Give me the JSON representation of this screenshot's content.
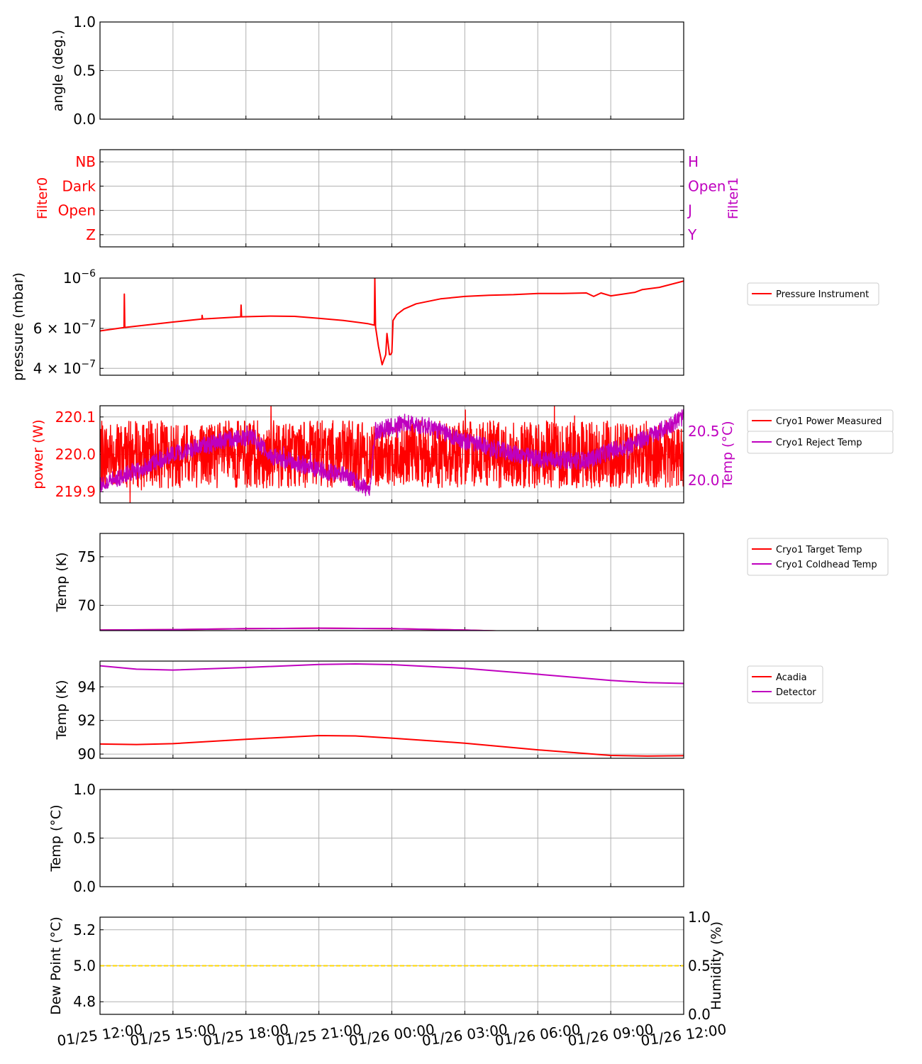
{
  "x_axis": {
    "unit": "hours since 01/25 12:00",
    "xlim": [
      0,
      24
    ],
    "ticks": [
      0,
      3,
      6,
      9,
      12,
      15,
      18,
      21,
      24
    ],
    "ticklabels": [
      "01/25 12:00",
      "01/25 15:00",
      "01/25 18:00",
      "01/25 21:00",
      "01/26 00:00",
      "01/26 03:00",
      "01/26 06:00",
      "01/26 09:00",
      "01/26 12:00"
    ]
  },
  "chart_data": [
    {
      "type": "line",
      "ylabel": "angle (deg.)",
      "scale": "linear",
      "ylim": [
        0,
        1
      ],
      "yticks": [
        0,
        0.5,
        1
      ],
      "yticklabels": [
        "0.0",
        "0.5",
        "1.0"
      ],
      "grid": true,
      "series": []
    },
    {
      "type": "line",
      "ylabel": "Filter0",
      "ylabel_color": "#ff0000",
      "scale": "linear",
      "ylim": [
        -0.5,
        3.5
      ],
      "yticks": [
        0,
        1,
        2,
        3
      ],
      "yticklabels": [
        "Z",
        "Open",
        "Dark",
        "NB"
      ],
      "ytick_color": "#ff0000",
      "right": {
        "ylabel": "Filter1",
        "color": "#bf00bf",
        "ylim": [
          -0.5,
          3.5
        ],
        "yticks": [
          0,
          1,
          2,
          3
        ],
        "yticklabels": [
          "Y",
          "J",
          "Open",
          "H"
        ]
      },
      "grid": true,
      "series": []
    },
    {
      "type": "line",
      "ylabel": "pressure (mbar)",
      "scale": "log",
      "ylim": [
        3.73e-07,
        1e-06
      ],
      "yticks": [
        1e-06,
        6e-07,
        4e-07
      ],
      "yticklabels": [
        {
          "text": "10",
          "sup": "−6"
        },
        {
          "text": "6 × 10",
          "sup": "−7"
        },
        {
          "text": "4 × 10",
          "sup": "−7"
        }
      ],
      "grid": true,
      "legend": {
        "placement": "outside-right",
        "separate": false
      },
      "series": [
        {
          "name": "Pressure Instrument",
          "color": "#ff0000",
          "x": [
            0,
            0.99,
            1.0,
            1.02,
            3,
            4.19,
            4.2,
            4.22,
            5.79,
            5.8,
            5.82,
            7,
            8,
            9,
            10,
            11,
            11.28,
            11.3,
            11.33,
            11.45,
            11.6,
            11.75,
            11.8,
            11.9,
            11.95,
            12.0,
            12.05,
            12.2,
            12.5,
            13,
            14,
            15,
            16,
            17,
            18,
            19,
            20,
            20.3,
            20.6,
            21,
            21.5,
            22,
            22.3,
            23,
            24
          ],
          "y": [
            5.85e-07,
            6.05e-07,
            8.5e-07,
            6.06e-07,
            6.4e-07,
            6.6e-07,
            6.85e-07,
            6.6e-07,
            6.75e-07,
            7.6e-07,
            6.75e-07,
            6.8e-07,
            6.78e-07,
            6.65e-07,
            6.5e-07,
            6.3e-07,
            6.2e-07,
            1e-06,
            6.1e-07,
            5e-07,
            4.15e-07,
            4.6e-07,
            5.7e-07,
            4.6e-07,
            4.6e-07,
            4.7e-07,
            6.5e-07,
            6.9e-07,
            7.3e-07,
            7.7e-07,
            8.1e-07,
            8.3e-07,
            8.4e-07,
            8.45e-07,
            8.55e-07,
            8.55e-07,
            8.6e-07,
            8.3e-07,
            8.6e-07,
            8.35e-07,
            8.5e-07,
            8.65e-07,
            8.9e-07,
            9.1e-07,
            9.7e-07
          ]
        }
      ]
    },
    {
      "type": "line",
      "ylabel": "power (W)",
      "ylabel_color": "#ff0000",
      "ytick_color": "#ff0000",
      "scale": "linear",
      "ylim": [
        219.87,
        220.13
      ],
      "yticks": [
        219.9,
        220.0,
        220.1
      ],
      "yticklabels": [
        "219.9",
        "220.0",
        "220.1"
      ],
      "right": {
        "ylabel": "Temp (°C)",
        "color": "#bf00bf",
        "ylim": [
          19.77,
          20.76
        ],
        "yticks": [
          20.0,
          20.5
        ],
        "yticklabels": [
          "20.0",
          "20.5"
        ]
      },
      "grid": true,
      "legend": {
        "placement": "outside-right",
        "separate": true
      },
      "series": [
        {
          "name": "Cryo1 Power Measured",
          "color": "#ff0000",
          "noise": 0.09,
          "seed": 7,
          "x": [
            0,
            24
          ],
          "y": [
            220.0,
            220.0
          ]
        },
        {
          "name": "Cryo1 Reject Temp",
          "color": "#bf00bf",
          "axis": "right",
          "noise": 0.09,
          "seed": 13,
          "x": [
            0,
            1.5,
            3,
            5,
            6.3,
            7,
            8.5,
            10,
            10.8,
            11.1,
            11.3,
            12.5,
            13.5,
            15,
            16.5,
            18,
            20,
            21,
            22,
            23,
            24
          ],
          "y": [
            19.95,
            20.1,
            20.27,
            20.4,
            20.45,
            20.25,
            20.15,
            20.05,
            19.95,
            19.88,
            20.5,
            20.58,
            20.55,
            20.4,
            20.3,
            20.22,
            20.2,
            20.3,
            20.38,
            20.5,
            20.65
          ]
        }
      ]
    },
    {
      "type": "line",
      "ylabel": "Temp (K)",
      "scale": "linear",
      "ylim": [
        67.4,
        77.4
      ],
      "yticks": [
        70,
        75
      ],
      "yticklabels": [
        "70",
        "75"
      ],
      "grid": true,
      "legend": {
        "placement": "outside-right",
        "separate": false
      },
      "series": [
        {
          "name": "Cryo1 Target Temp",
          "color": "#ff0000",
          "x": [
            0,
            3,
            6,
            9,
            12,
            15,
            18,
            21,
            24
          ],
          "y": [
            67.45,
            67.5,
            67.6,
            67.65,
            67.6,
            67.45,
            67.25,
            67.05,
            67.05
          ]
        },
        {
          "name": "Cryo1 Coldhead Temp",
          "color": "#bf00bf",
          "x": [
            0,
            3,
            6,
            9,
            12,
            15,
            18,
            21,
            24
          ],
          "y": [
            67.45,
            67.5,
            67.6,
            67.65,
            67.6,
            67.45,
            67.25,
            67.05,
            67.05
          ]
        }
      ]
    },
    {
      "type": "line",
      "ylabel": "Temp (K)",
      "scale": "linear",
      "ylim": [
        89.75,
        95.53
      ],
      "yticks": [
        90,
        92,
        94
      ],
      "yticklabels": [
        "90",
        "92",
        "94"
      ],
      "grid": true,
      "legend": {
        "placement": "outside-right",
        "separate": false
      },
      "series": [
        {
          "name": "Acadia",
          "color": "#ff0000",
          "x": [
            0,
            1.5,
            3,
            6,
            9,
            10.5,
            12,
            15,
            18,
            21,
            22.5,
            24
          ],
          "y": [
            90.6,
            90.57,
            90.62,
            90.88,
            91.1,
            91.08,
            90.95,
            90.65,
            90.25,
            89.92,
            89.88,
            89.9
          ]
        },
        {
          "name": "Detector",
          "color": "#bf00bf",
          "x": [
            0,
            1.5,
            3,
            6,
            9,
            10.5,
            12,
            15,
            18,
            21,
            22.5,
            24
          ],
          "y": [
            95.25,
            95.05,
            95.0,
            95.15,
            95.33,
            95.36,
            95.32,
            95.1,
            94.75,
            94.38,
            94.25,
            94.2
          ]
        }
      ]
    },
    {
      "type": "line",
      "ylabel": "Temp (°C)",
      "scale": "linear",
      "ylim": [
        0,
        1
      ],
      "yticks": [
        0,
        0.5,
        1
      ],
      "yticklabels": [
        "0.0",
        "0.5",
        "1.0"
      ],
      "grid": true,
      "series": []
    },
    {
      "type": "line",
      "ylabel": "Dew Point (°C)",
      "scale": "linear",
      "ylim": [
        4.73,
        5.27
      ],
      "yticks": [
        4.8,
        5.0,
        5.2
      ],
      "yticklabels": [
        "4.8",
        "5.0",
        "5.2"
      ],
      "right": {
        "ylabel": "Humidity (%)",
        "color": "#000000",
        "ylim": [
          0,
          1
        ],
        "yticks": [
          0,
          0.5,
          1
        ],
        "yticklabels": [
          "0.0",
          "0.5",
          "1.0"
        ]
      },
      "grid": true,
      "series": [
        {
          "name": "Dew Point",
          "color": "#ffd700",
          "dashed": true,
          "x": [
            0,
            24
          ],
          "y": [
            5.0,
            5.0
          ]
        }
      ]
    }
  ]
}
